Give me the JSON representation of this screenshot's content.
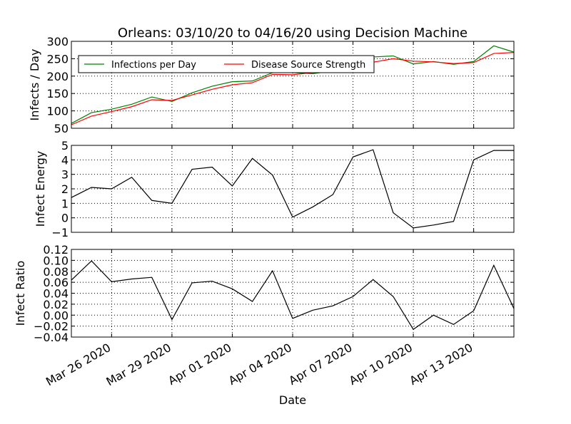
{
  "chart_data": [
    {
      "type": "line",
      "title": "Orleans: 03/10/20 to 04/16/20 using Decision Machine",
      "ylabel": "Infects / Day",
      "x": [
        "2020-03-24",
        "2020-03-25",
        "2020-03-26",
        "2020-03-27",
        "2020-03-28",
        "2020-03-29",
        "2020-03-30",
        "2020-03-31",
        "2020-04-01",
        "2020-04-02",
        "2020-04-03",
        "2020-04-04",
        "2020-04-05",
        "2020-04-06",
        "2020-04-07",
        "2020-04-08",
        "2020-04-09",
        "2020-04-10",
        "2020-04-11",
        "2020-04-12",
        "2020-04-13",
        "2020-04-14",
        "2020-04-15"
      ],
      "xlim": [
        "2020-03-24",
        "2020-04-15"
      ],
      "series": [
        {
          "name": "Infections per Day",
          "color": "#008000",
          "values": [
            64,
            95,
            105,
            119,
            140,
            127,
            152,
            171,
            184,
            186,
            210,
            210,
            207,
            215,
            235,
            255,
            258,
            235,
            242,
            234,
            242,
            287,
            269
          ]
        },
        {
          "name": "Disease Source Strength",
          "color": "#ff0000",
          "values": [
            60,
            85,
            98,
            112,
            132,
            130,
            146,
            162,
            175,
            181,
            205,
            204,
            210,
            215,
            230,
            240,
            250,
            243,
            241,
            236,
            239,
            265,
            268
          ]
        }
      ],
      "ylim": [
        50,
        300
      ],
      "yticks": [
        50,
        100,
        150,
        200,
        250,
        300
      ],
      "grid": true,
      "legend": "upper left"
    },
    {
      "type": "line",
      "ylabel": "Infect Energy",
      "x": [
        "2020-03-24",
        "2020-03-25",
        "2020-03-26",
        "2020-03-27",
        "2020-03-28",
        "2020-03-29",
        "2020-03-30",
        "2020-03-31",
        "2020-04-01",
        "2020-04-02",
        "2020-04-03",
        "2020-04-04",
        "2020-04-05",
        "2020-04-06",
        "2020-04-07",
        "2020-04-08",
        "2020-04-09",
        "2020-04-10",
        "2020-04-11",
        "2020-04-12",
        "2020-04-13",
        "2020-04-14",
        "2020-04-15"
      ],
      "xlim": [
        "2020-03-24",
        "2020-04-15"
      ],
      "series": [
        {
          "color": "#000000",
          "values": [
            1.4,
            2.1,
            2.0,
            2.8,
            1.2,
            1.0,
            3.35,
            3.5,
            2.2,
            4.1,
            2.95,
            0.05,
            0.75,
            1.6,
            4.2,
            4.7,
            0.35,
            -0.7,
            -0.5,
            -0.25,
            4.0,
            4.65,
            4.65
          ]
        }
      ],
      "ylim": [
        -1,
        5
      ],
      "yticks": [
        {
          "value": -1,
          "label": "−1"
        },
        0,
        1,
        2,
        3,
        4,
        5
      ],
      "grid": true
    },
    {
      "type": "line",
      "ylabel": "Infect Ratio",
      "xlabel": "Date",
      "x": [
        "2020-03-24",
        "2020-03-25",
        "2020-03-26",
        "2020-03-27",
        "2020-03-28",
        "2020-03-29",
        "2020-03-30",
        "2020-03-31",
        "2020-04-01",
        "2020-04-02",
        "2020-04-03",
        "2020-04-04",
        "2020-04-05",
        "2020-04-06",
        "2020-04-07",
        "2020-04-08",
        "2020-04-09",
        "2020-04-10",
        "2020-04-11",
        "2020-04-12",
        "2020-04-13",
        "2020-04-14",
        "2020-04-15"
      ],
      "xlim": [
        "2020-03-24",
        "2020-04-15"
      ],
      "xticks": [
        {
          "value": "2020-03-26",
          "label": "Mar 26 2020"
        },
        {
          "value": "2020-03-29",
          "label": "Mar 29 2020"
        },
        {
          "value": "2020-04-01",
          "label": "Apr 01 2020"
        },
        {
          "value": "2020-04-04",
          "label": "Apr 04 2020"
        },
        {
          "value": "2020-04-07",
          "label": "Apr 07 2020"
        },
        {
          "value": "2020-04-10",
          "label": "Apr 10 2020"
        },
        {
          "value": "2020-04-13",
          "label": "Apr 13 2020"
        }
      ],
      "series": [
        {
          "color": "#000000",
          "values": [
            0.064,
            0.099,
            0.061,
            0.066,
            0.069,
            -0.008,
            0.059,
            0.062,
            0.048,
            0.025,
            0.081,
            -0.006,
            0.009,
            0.017,
            0.034,
            0.065,
            0.034,
            -0.026,
            0.0,
            -0.017,
            0.008,
            0.091,
            0.012
          ]
        }
      ],
      "ylim": [
        -0.04,
        0.12
      ],
      "yticks": [
        {
          "value": -0.04,
          "label": "−0.04"
        },
        {
          "value": -0.02,
          "label": "−0.02"
        },
        {
          "value": 0,
          "label": "0.00"
        },
        {
          "value": 0.02,
          "label": "0.02"
        },
        {
          "value": 0.04,
          "label": "0.04"
        },
        {
          "value": 0.06,
          "label": "0.06"
        },
        {
          "value": 0.08,
          "label": "0.08"
        },
        {
          "value": 0.1,
          "label": "0.10"
        },
        {
          "value": 0.12,
          "label": "0.12"
        }
      ],
      "grid": true
    }
  ]
}
